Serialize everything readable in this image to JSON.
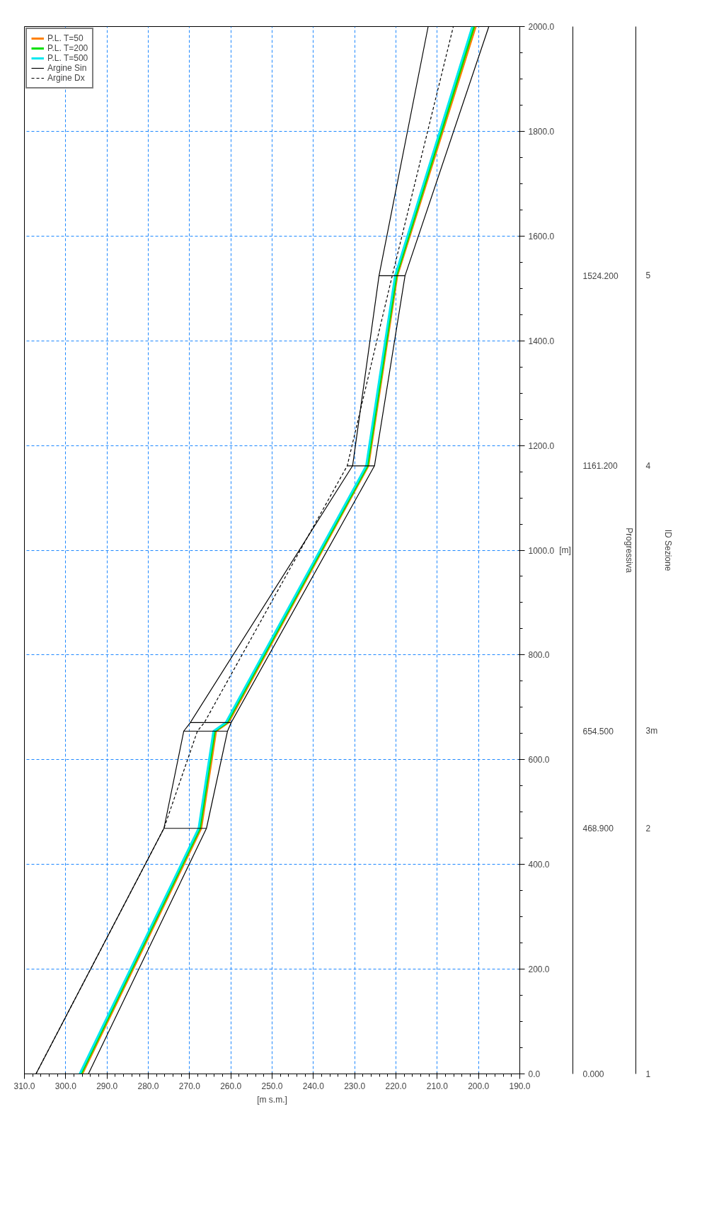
{
  "chart_data": {
    "type": "line",
    "orientation": "horizontal",
    "ylabel": "[m]",
    "xlabel": "[m s.m.]",
    "ylim": [
      0,
      2000
    ],
    "yticks": [
      {
        "value": 0,
        "label": "0.0"
      },
      {
        "value": 200,
        "label": "200.0"
      },
      {
        "value": 400,
        "label": "400.0"
      },
      {
        "value": 600,
        "label": "600.0"
      },
      {
        "value": 800,
        "label": "800.0"
      },
      {
        "value": 1000,
        "label": "1000.0"
      },
      {
        "value": 1200,
        "label": "1200.0"
      },
      {
        "value": 1400,
        "label": "1400.0"
      },
      {
        "value": 1600,
        "label": "1600.0"
      },
      {
        "value": 1800,
        "label": "1800.0"
      },
      {
        "value": 2000,
        "label": "2000.0"
      }
    ],
    "xlim": [
      310,
      190
    ],
    "xticks": [
      {
        "value": 310,
        "label": "310.0"
      },
      {
        "value": 300,
        "label": "300.0"
      },
      {
        "value": 290,
        "label": "290.0"
      },
      {
        "value": 280,
        "label": "280.0"
      },
      {
        "value": 270,
        "label": "270.0"
      },
      {
        "value": 260,
        "label": "260.0"
      },
      {
        "value": 250,
        "label": "250.0"
      },
      {
        "value": 240,
        "label": "240.0"
      },
      {
        "value": 230,
        "label": "230.0"
      },
      {
        "value": 220,
        "label": "220.0"
      },
      {
        "value": 210,
        "label": "210.0"
      },
      {
        "value": 200,
        "label": "200.0"
      },
      {
        "value": 190,
        "label": "190.0"
      }
    ],
    "x": [
      0,
      468.9,
      654.5,
      671,
      1161.2,
      1524.2,
      2000
    ],
    "grid": true,
    "legend": "top left",
    "series": [
      {
        "name": "P.L. T=50",
        "color": "#ff8000",
        "values": [
          296.0,
          267.2,
          263.6,
          260.6,
          226.7,
          219.7,
          200.7
        ]
      },
      {
        "name": "P.L. T=200",
        "color": "#00e000",
        "values": [
          296.3,
          267.5,
          263.9,
          260.9,
          226.9,
          219.9,
          201.1
        ]
      },
      {
        "name": "P.L. T=500",
        "color": "#00e8f0",
        "values": [
          296.6,
          267.8,
          264.2,
          261.2,
          227.2,
          220.2,
          201.5
        ]
      },
      {
        "name": "Argine Sin",
        "color": "#000000",
        "line_style": "solid",
        "values": [
          307.2,
          276.2,
          271.4,
          269.8,
          230.5,
          224.1,
          212.2
        ]
      },
      {
        "name": "Argine Dx",
        "color": "#000000",
        "line_style": "dashed",
        "values": [
          307.2,
          276.2,
          268.1,
          266.4,
          231.8,
          220.9,
          206.1
        ]
      },
      {
        "color": "#000000",
        "line_style": "solid",
        "values": [
          294.5,
          265.9,
          260.8,
          259.9,
          225.2,
          217.8,
          197.5
        ]
      },
      {
        "color": "#000000",
        "x": [
          468.9,
          468.9
        ],
        "values": [
          276.2,
          265.9
        ]
      },
      {
        "color": "#000000",
        "x": [
          654.5,
          654.5
        ],
        "values": [
          271.4,
          260.8
        ]
      },
      {
        "color": "#000000",
        "x": [
          671,
          671
        ],
        "values": [
          269.8,
          259.9
        ]
      },
      {
        "color": "#000000",
        "x": [
          1161.2,
          1161.2
        ],
        "values": [
          231.8,
          225.2
        ]
      },
      {
        "color": "#000000",
        "x": [
          1524.2,
          1524.2
        ],
        "values": [
          224.1,
          217.8
        ]
      }
    ],
    "y2label": "Progressiva",
    "y2lim": [
      0,
      2000
    ],
    "y2ticks": [
      {
        "value": 0,
        "label": "0.000"
      },
      {
        "value": 468.9,
        "label": "468.900"
      },
      {
        "value": 654.5,
        "label": "654.500"
      },
      {
        "value": 1161.2,
        "label": "1161.200"
      },
      {
        "value": 1524.2,
        "label": "1524.200"
      }
    ],
    "annotations": [
      "ID Sezione",
      "1",
      "2",
      "3m",
      "4",
      "5"
    ]
  }
}
